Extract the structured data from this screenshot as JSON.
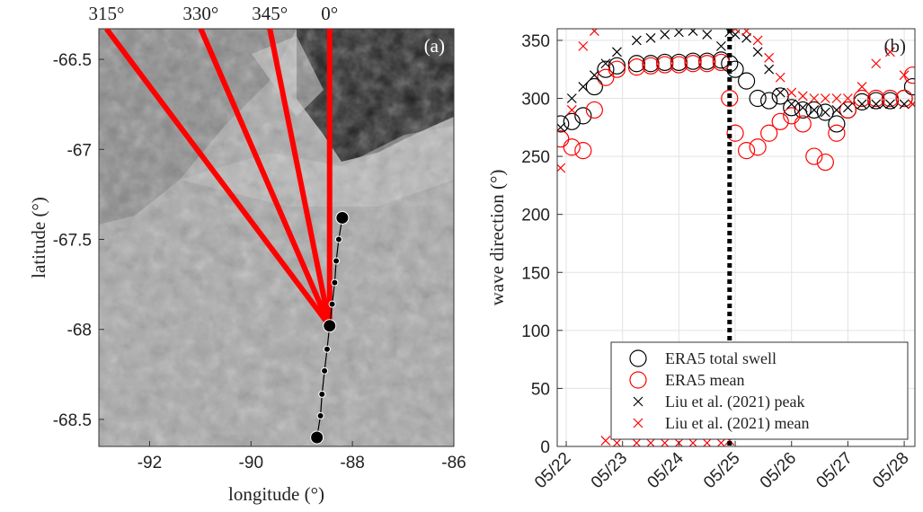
{
  "chart_data": [
    {
      "type": "scatter",
      "xlabel": "longitude (°)",
      "ylabel": "latitude (°)",
      "annotation": "(a)",
      "xlim": [
        -93,
        -86
      ],
      "ylim": [
        -68.65,
        -66.33
      ],
      "xticks": [
        -92,
        -90,
        -88,
        -86
      ],
      "yticks": [
        -66.5,
        -67,
        -67.5,
        -68,
        -68.5
      ],
      "x": [
        -88.2,
        -88.27,
        -88.32,
        -88.35,
        -88.4,
        -88.45,
        -88.5,
        -88.55,
        -88.6,
        -88.63,
        -88.7
      ],
      "values": [
        -67.38,
        -67.5,
        -67.62,
        -67.74,
        -67.86,
        -67.98,
        -68.11,
        -68.23,
        -68.36,
        -68.48,
        -68.6
      ],
      "sizes": [
        7,
        3.5,
        3.5,
        3.5,
        3.5,
        7,
        3.5,
        3.5,
        3.5,
        3.5,
        7
      ],
      "color": "#000000",
      "ray_origin": [
        -88.45,
        -67.98
      ],
      "ray_color": "#ff0000",
      "rays": [
        {
          "value": 315,
          "label": "315°"
        },
        {
          "value": 330,
          "label": "330°"
        },
        {
          "value": 345,
          "label": "345°"
        },
        {
          "value": 0,
          "label": "0°"
        }
      ]
    },
    {
      "type": "scatter",
      "ylabel": "wave direction (°)",
      "annotation": "(b)",
      "xlim": [
        21.84,
        28.19
      ],
      "ylim": [
        0,
        360
      ],
      "grid": true,
      "legend": "lower right",
      "xticks": [
        {
          "value": 22,
          "label": "05/22"
        },
        {
          "value": 23,
          "label": "05/23"
        },
        {
          "value": 24,
          "label": "05/24"
        },
        {
          "value": 25,
          "label": "05/25"
        },
        {
          "value": 26,
          "label": "05/26"
        },
        {
          "value": 27,
          "label": "05/27"
        },
        {
          "value": 28,
          "label": "05/28"
        }
      ],
      "yticks": [
        0,
        50,
        100,
        150,
        200,
        250,
        300,
        350
      ],
      "vline": 24.9,
      "x": [
        21.9,
        22.1,
        22.3,
        22.5,
        22.7,
        22.9,
        23.25,
        23.5,
        23.75,
        24.0,
        24.25,
        24.5,
        24.75,
        24.9,
        25.0,
        25.2,
        25.4,
        25.6,
        25.8,
        26.0,
        26.2,
        26.4,
        26.6,
        26.8,
        27.0,
        27.25,
        27.5,
        27.75,
        28.0,
        28.15
      ],
      "series": [
        {
          "name": "ERA5 total swell",
          "color": "#000000",
          "marker": "circle",
          "values": [
            278,
            280,
            285,
            310,
            325,
            328,
            330,
            330,
            331,
            331,
            332,
            332,
            333,
            330,
            325,
            315,
            300,
            298,
            302,
            292,
            290,
            290,
            288,
            278,
            290,
            297,
            298,
            298,
            300,
            310
          ]
        },
        {
          "name": "ERA5 mean",
          "color": "#ff0000",
          "marker": "circle",
          "values": [
            265,
            258,
            255,
            290,
            318,
            325,
            327,
            328,
            329,
            329,
            330,
            330,
            331,
            300,
            270,
            255,
            258,
            270,
            280,
            285,
            278,
            250,
            245,
            270,
            290,
            300,
            300,
            300,
            300,
            320
          ]
        },
        {
          "name": "Liu et al. (2021) peak",
          "color": "#000000",
          "marker": "x",
          "values": [
            275,
            300,
            310,
            320,
            330,
            340,
            350,
            352,
            355,
            357,
            358,
            355,
            345,
            357,
            355,
            352,
            340,
            325,
            305,
            295,
            292,
            290,
            288,
            290,
            292,
            295,
            295,
            295,
            295,
            295
          ]
        },
        {
          "name": "Liu et al. (2021) mean",
          "color": "#ff0000",
          "marker": "x",
          "values": [
            240,
            290,
            345,
            358,
            5,
            3,
            3,
            3,
            3,
            3,
            3,
            3,
            3,
            5,
            360,
            358,
            350,
            335,
            318,
            305,
            302,
            300,
            300,
            300,
            300,
            310,
            330,
            340,
            320,
            295
          ]
        }
      ]
    }
  ]
}
